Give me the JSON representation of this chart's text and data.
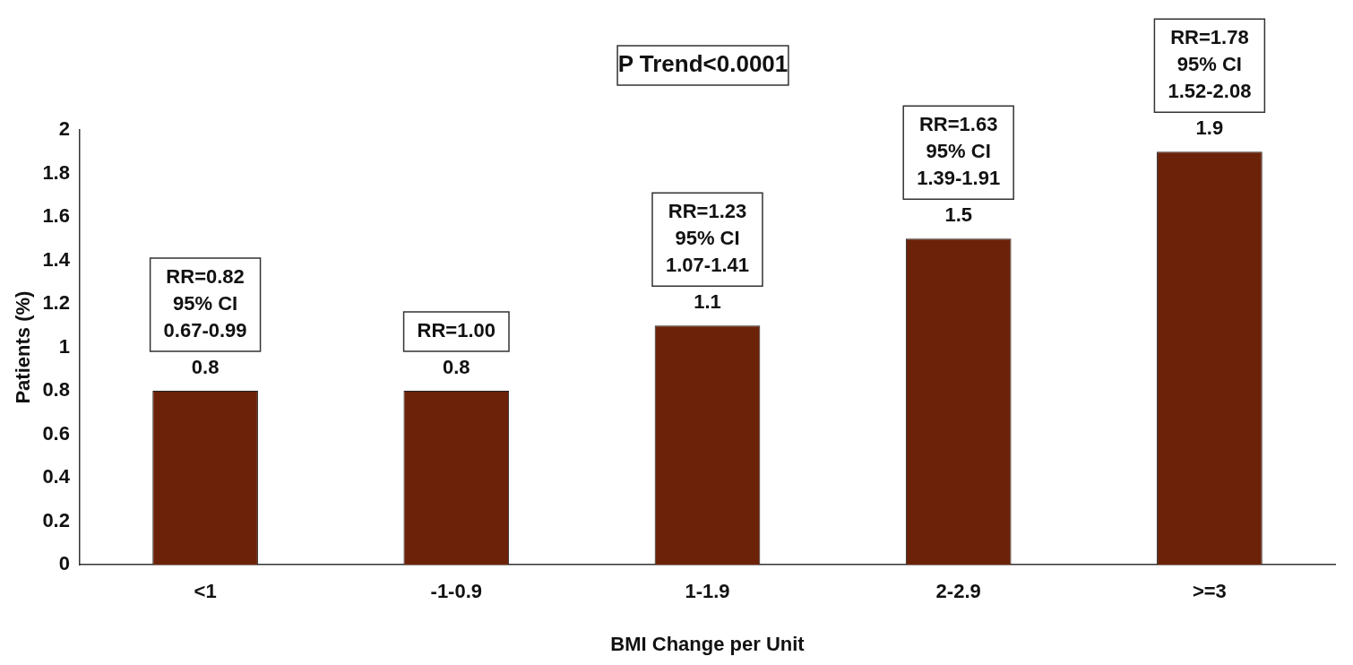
{
  "chart_data": {
    "type": "bar",
    "xlabel": "BMI Change per Unit",
    "ylabel": "Patients (%)",
    "categories": [
      "<1",
      "-1-0.9",
      "1-1.9",
      "2-2.9",
      ">=3"
    ],
    "values": [
      0.8,
      0.8,
      1.1,
      1.5,
      1.9
    ],
    "color": "#6b2208",
    "ylim": [
      0,
      2
    ],
    "yticks": [
      0,
      0.2,
      0.4,
      0.6,
      0.8,
      1,
      1.2,
      1.4,
      1.6,
      1.8,
      2
    ],
    "data_labels": true,
    "grid": false,
    "legend": false,
    "annotations": [
      "P Trend<0.0001",
      "RR=0.82\n95% CI\n0.67-0.99",
      "RR=1.00",
      "RR=1.23\n95% CI\n1.07-1.41",
      "RR=1.63\n95% CI\n1.39-1.91",
      "RR=1.78\n95% CI\n1.52-2.08"
    ]
  }
}
